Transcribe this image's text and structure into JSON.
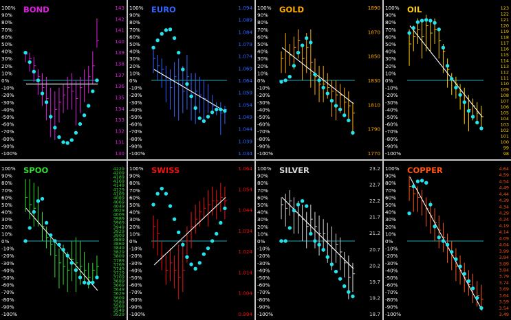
{
  "colors": {
    "background": "#000000",
    "zero_line": "#2aa6b4",
    "dots": "#22e4ef",
    "trend": "#ffffff",
    "left_axis": "#ffffff"
  },
  "left_axis_ticks": [
    "100%",
    "90%",
    "80%",
    "70%",
    "60%",
    "50%",
    "40%",
    "30%",
    "20%",
    "10%",
    "0%",
    "-10%",
    "-20%",
    "-30%",
    "-40%",
    "-50%",
    "-60%",
    "-70%",
    "-80%",
    "-90%",
    "-100%"
  ],
  "chart_data": [
    {
      "type": "line",
      "title": "BOND",
      "color": "#e01fe0",
      "right_ticks": [
        "143",
        "142",
        "141",
        "140",
        "139",
        "138",
        "137",
        "136",
        "135",
        "134",
        "133",
        "132",
        "131",
        "130"
      ],
      "trend": [
        -5,
        -5
      ],
      "bars": [
        [
          0.4,
          0.25,
          0.36
        ],
        [
          0.38,
          0.12,
          0.3
        ],
        [
          0.32,
          -0.02,
          0.2
        ],
        [
          0.15,
          -0.2,
          0.05
        ],
        [
          0.1,
          -0.35,
          -0.1
        ],
        [
          0.05,
          -0.55,
          -0.25
        ],
        [
          -0.1,
          -0.78,
          -0.5
        ],
        [
          -0.15,
          -0.82,
          -0.4
        ],
        [
          -0.1,
          -0.58,
          -0.3
        ],
        [
          -0.05,
          -0.45,
          -0.2
        ],
        [
          0.05,
          -0.4,
          -0.1
        ],
        [
          0.1,
          -0.4,
          -0.15
        ],
        [
          0.0,
          -0.62,
          -0.25
        ],
        [
          0.05,
          -0.45,
          -0.1
        ],
        [
          0.15,
          -0.3,
          0.0
        ],
        [
          0.2,
          -0.18,
          0.05
        ],
        [
          0.4,
          -0.05,
          0.2
        ],
        [
          0.85,
          0.45,
          0.55
        ]
      ],
      "dots": [
        0.38,
        0.25,
        0.12,
        0.0,
        -0.18,
        -0.3,
        -0.5,
        -0.65,
        -0.78,
        -0.85,
        -0.86,
        -0.82,
        -0.72,
        -0.6,
        -0.48,
        -0.35,
        -0.15,
        0.0
      ]
    },
    {
      "type": "line",
      "title": "EURO",
      "color": "#3366ff",
      "right_ticks": [
        "1.094",
        "1.089",
        "1.084",
        "1.079",
        "1.074",
        "1.069",
        "1.064",
        "1.059",
        "1.054",
        "1.049",
        "1.044",
        "1.039",
        "1.034"
      ],
      "trend": [
        15,
        -43
      ],
      "bars": [
        [
          0.42,
          0.1,
          0.3
        ],
        [
          0.35,
          0.0,
          0.2
        ],
        [
          0.3,
          -0.1,
          0.15
        ],
        [
          0.2,
          -0.3,
          0.0
        ],
        [
          0.15,
          -0.4,
          -0.1
        ],
        [
          0.25,
          -0.5,
          0.05
        ],
        [
          0.3,
          -0.55,
          -0.05
        ],
        [
          0.2,
          -0.45,
          -0.15
        ],
        [
          0.35,
          -0.4,
          0.05
        ],
        [
          0.1,
          -0.55,
          -0.2
        ],
        [
          0.1,
          -0.6,
          -0.15
        ],
        [
          0.05,
          -0.45,
          -0.2
        ],
        [
          0.0,
          -0.55,
          -0.25
        ],
        [
          -0.05,
          -0.45,
          -0.3
        ],
        [
          -0.2,
          -0.45,
          -0.35
        ],
        [
          -0.3,
          -0.48,
          -0.4
        ],
        [
          -0.3,
          -0.75,
          -0.45
        ],
        [
          -0.35,
          -0.6,
          -0.4
        ]
      ],
      "dots": [
        0.45,
        0.55,
        0.64,
        0.69,
        0.7,
        0.58,
        0.38,
        0.15,
        -0.05,
        -0.22,
        -0.38,
        -0.52,
        -0.56,
        -0.5,
        -0.44,
        -0.4,
        -0.4,
        -0.42
      ]
    },
    {
      "type": "line",
      "title": "GOLD",
      "color": "#ffaa00",
      "right_ticks": [
        "1890",
        "1870",
        "1850",
        "1830",
        "1810",
        "1790",
        "1770"
      ],
      "trend": [
        45,
        -32
      ],
      "bars": [
        [
          0.4,
          0.1,
          0.3
        ],
        [
          0.65,
          0.1,
          0.4
        ],
        [
          0.5,
          0.2,
          0.35
        ],
        [
          0.6,
          0.15,
          0.45
        ],
        [
          0.7,
          0.3,
          0.55
        ],
        [
          0.5,
          0.0,
          0.3
        ],
        [
          0.65,
          0.1,
          0.45
        ],
        [
          0.7,
          -0.1,
          0.25
        ],
        [
          0.3,
          -0.2,
          0.05
        ],
        [
          0.2,
          -0.3,
          -0.05
        ],
        [
          0.2,
          -0.3,
          -0.05
        ],
        [
          0.1,
          -0.25,
          -0.1
        ],
        [
          0.0,
          -0.5,
          -0.15
        ],
        [
          0.0,
          -0.55,
          -0.2
        ],
        [
          -0.05,
          -0.45,
          -0.2
        ],
        [
          -0.1,
          -0.5,
          -0.3
        ],
        [
          -0.15,
          -0.55,
          -0.35
        ],
        [
          -0.3,
          -0.75,
          -0.45
        ]
      ],
      "dots": [
        -0.02,
        0.0,
        0.05,
        0.2,
        0.38,
        0.48,
        0.58,
        0.52,
        0.08,
        0.0,
        -0.1,
        -0.18,
        -0.28,
        -0.35,
        -0.4,
        -0.48,
        -0.55,
        -0.72
      ]
    },
    {
      "type": "line",
      "title": "OIL",
      "color": "#ffcc00",
      "right_ticks": [
        "123",
        "122",
        "121",
        "120",
        "119",
        "118",
        "117",
        "116",
        "115",
        "114",
        "113",
        "112",
        "111",
        "110",
        "109",
        "108",
        "107",
        "106",
        "105",
        "104",
        "103",
        "102",
        "101",
        "100",
        "99",
        "98"
      ],
      "trend": [
        75,
        -50
      ],
      "bars": [
        [
          0.7,
          0.2,
          0.5
        ],
        [
          0.75,
          0.4,
          0.6
        ],
        [
          0.85,
          0.5,
          0.7
        ],
        [
          0.8,
          0.3,
          0.6
        ],
        [
          0.9,
          0.4,
          0.75
        ],
        [
          0.8,
          0.4,
          0.65
        ],
        [
          0.85,
          0.5,
          0.7
        ],
        [
          0.7,
          0.3,
          0.55
        ],
        [
          0.5,
          0.1,
          0.4
        ],
        [
          0.3,
          -0.1,
          0.15
        ],
        [
          0.1,
          -0.2,
          0.0
        ],
        [
          0.05,
          -0.25,
          -0.05
        ],
        [
          -0.05,
          -0.4,
          -0.15
        ],
        [
          -0.1,
          -0.6,
          -0.3
        ],
        [
          -0.2,
          -0.7,
          -0.4
        ],
        [
          -0.25,
          -0.55,
          -0.35
        ],
        [
          -0.3,
          -0.6,
          -0.45
        ],
        [
          -0.35,
          -0.65,
          -0.5
        ]
      ],
      "dots": [
        0.65,
        0.72,
        0.8,
        0.82,
        0.83,
        0.82,
        0.79,
        0.7,
        0.45,
        0.2,
        0.02,
        -0.1,
        -0.2,
        -0.3,
        -0.42,
        -0.5,
        -0.58,
        -0.66
      ]
    },
    {
      "type": "line",
      "title": "SPOO",
      "color": "#33dd33",
      "right_ticks": [
        "4229",
        "4209",
        "4189",
        "4169",
        "4149",
        "4129",
        "4109",
        "4089",
        "4069",
        "4049",
        "4029",
        "4009",
        "3989",
        "3969",
        "3949",
        "3929",
        "3909",
        "3889",
        "3869",
        "3849",
        "3829",
        "3809",
        "3789",
        "3769",
        "3749",
        "3729",
        "3709",
        "3689",
        "3669",
        "3649",
        "3629",
        "3609",
        "3589",
        "3569",
        "3549",
        "3529"
      ],
      "trend": [
        45,
        -68
      ],
      "bars": [
        [
          0.85,
          0.4,
          0.6
        ],
        [
          0.85,
          0.3,
          0.5
        ],
        [
          0.8,
          0.2,
          0.45
        ],
        [
          0.75,
          0.2,
          0.55
        ],
        [
          0.4,
          0.0,
          0.2
        ],
        [
          0.2,
          -0.1,
          0.05
        ],
        [
          0.1,
          -0.2,
          -0.05
        ],
        [
          0.0,
          -0.5,
          -0.2
        ],
        [
          -0.1,
          -0.65,
          -0.3
        ],
        [
          -0.05,
          -0.6,
          -0.35
        ],
        [
          -0.15,
          -0.7,
          -0.4
        ],
        [
          0.0,
          -0.55,
          -0.25
        ],
        [
          0.05,
          -0.7,
          -0.3
        ],
        [
          0.0,
          -0.6,
          -0.35
        ],
        [
          -0.15,
          -0.6,
          -0.4
        ],
        [
          -0.3,
          -0.65,
          -0.5
        ],
        [
          -0.3,
          -0.55,
          -0.4
        ],
        [
          -0.2,
          -0.5,
          -0.35
        ]
      ],
      "dots": [
        0.0,
        0.18,
        0.4,
        0.55,
        0.58,
        0.25,
        0.08,
        0.0,
        -0.05,
        -0.12,
        -0.2,
        -0.3,
        -0.4,
        -0.5,
        -0.57,
        -0.58,
        -0.57,
        -0.5
      ]
    },
    {
      "type": "line",
      "title": "SWISS",
      "color": "#ee1111",
      "right_ticks": [
        "1.064",
        "1.054",
        "1.044",
        "1.034",
        "1.024",
        "1.014",
        "1.004",
        "0.994"
      ],
      "trend": [
        -33,
        60
      ],
      "bars": [
        [
          0.35,
          -0.1,
          0.2
        ],
        [
          0.3,
          -0.2,
          0.1
        ],
        [
          0.0,
          -0.4,
          -0.2
        ],
        [
          -0.2,
          -0.6,
          -0.4
        ],
        [
          -0.1,
          -0.55,
          -0.3
        ],
        [
          -0.2,
          -0.65,
          -0.4
        ],
        [
          -0.05,
          -0.8,
          -0.5
        ],
        [
          0.0,
          -0.7,
          -0.4
        ],
        [
          0.2,
          -0.3,
          0.0
        ],
        [
          0.4,
          -0.1,
          0.2
        ],
        [
          0.5,
          0.1,
          0.3
        ],
        [
          0.55,
          0.2,
          0.4
        ],
        [
          0.6,
          0.3,
          0.45
        ],
        [
          0.7,
          0.2,
          0.5
        ],
        [
          0.75,
          0.35,
          0.55
        ],
        [
          0.7,
          0.3,
          0.55
        ],
        [
          0.8,
          0.4,
          0.6
        ],
        [
          0.75,
          0.3,
          0.55
        ]
      ],
      "dots": [
        0.5,
        0.65,
        0.72,
        0.65,
        0.48,
        0.3,
        0.12,
        -0.05,
        -0.22,
        -0.32,
        -0.38,
        -0.3,
        -0.18,
        -0.1,
        0.0,
        0.1,
        0.25,
        0.45
      ]
    },
    {
      "type": "line",
      "title": "SILVER",
      "color": "#d8d8d8",
      "right_ticks": [
        "23.2",
        "22.7",
        "22.2",
        "21.7",
        "21.2",
        "20.7",
        "20.2",
        "19.7",
        "19.2",
        "18.7"
      ],
      "trend": [
        60,
        -38
      ],
      "bars": [
        [
          0.6,
          0.3,
          0.5
        ],
        [
          0.65,
          0.2,
          0.45
        ],
        [
          0.7,
          0.35,
          0.55
        ],
        [
          0.6,
          0.1,
          0.4
        ],
        [
          0.55,
          0.1,
          0.35
        ],
        [
          0.5,
          0.0,
          0.3
        ],
        [
          0.4,
          -0.1,
          0.2
        ],
        [
          0.5,
          0.1,
          0.3
        ],
        [
          0.4,
          -0.1,
          0.2
        ],
        [
          0.35,
          -0.2,
          0.1
        ],
        [
          0.3,
          -0.15,
          0.1
        ],
        [
          0.25,
          -0.3,
          0.0
        ],
        [
          0.2,
          -0.4,
          -0.1
        ],
        [
          0.1,
          -0.3,
          -0.05
        ],
        [
          0.05,
          -0.4,
          -0.15
        ],
        [
          -0.15,
          -0.5,
          -0.3
        ],
        [
          -0.2,
          -0.8,
          -0.5
        ],
        [
          -0.3,
          -0.7,
          -0.45
        ]
      ],
      "dots": [
        0.0,
        0.0,
        0.18,
        0.42,
        0.5,
        0.55,
        0.48,
        0.1,
        0.0,
        -0.05,
        -0.12,
        -0.22,
        -0.32,
        -0.42,
        -0.52,
        -0.62,
        -0.7,
        -0.76
      ]
    },
    {
      "type": "line",
      "title": "COPPER",
      "color": "#ff5511",
      "right_ticks": [
        "4.64",
        "4.59",
        "4.54",
        "4.49",
        "4.44",
        "4.39",
        "4.34",
        "4.29",
        "4.24",
        "4.19",
        "4.14",
        "4.09",
        "4.04",
        "3.99",
        "3.94",
        "3.89",
        "3.84",
        "3.79",
        "3.74",
        "3.69",
        "3.64",
        "3.59",
        "3.54",
        "3.49"
      ],
      "trend": [
        88,
        -95
      ],
      "bars": [
        [
          0.9,
          0.55,
          0.75
        ],
        [
          0.8,
          0.4,
          0.65
        ],
        [
          0.75,
          0.4,
          0.6
        ],
        [
          0.7,
          0.35,
          0.55
        ],
        [
          0.6,
          0.2,
          0.45
        ],
        [
          0.55,
          0.1,
          0.35
        ],
        [
          0.45,
          0.0,
          0.25
        ],
        [
          0.35,
          -0.1,
          0.15
        ],
        [
          0.25,
          -0.15,
          0.05
        ],
        [
          0.1,
          -0.3,
          -0.1
        ],
        [
          0.0,
          -0.4,
          -0.2
        ],
        [
          -0.1,
          -0.55,
          -0.35
        ],
        [
          -0.2,
          -0.6,
          -0.4
        ],
        [
          -0.3,
          -0.7,
          -0.5
        ],
        [
          -0.4,
          -0.75,
          -0.6
        ],
        [
          -0.45,
          -0.85,
          -0.65
        ],
        [
          -0.55,
          -0.9,
          -0.75
        ],
        [
          -0.6,
          -0.95,
          -0.8
        ]
      ],
      "dots": [
        0.38,
        0.75,
        0.82,
        0.83,
        0.8,
        0.5,
        0.2,
        0.05,
        0.0,
        -0.05,
        -0.15,
        -0.25,
        -0.35,
        -0.45,
        -0.55,
        -0.65,
        -0.78,
        -0.92
      ]
    }
  ]
}
